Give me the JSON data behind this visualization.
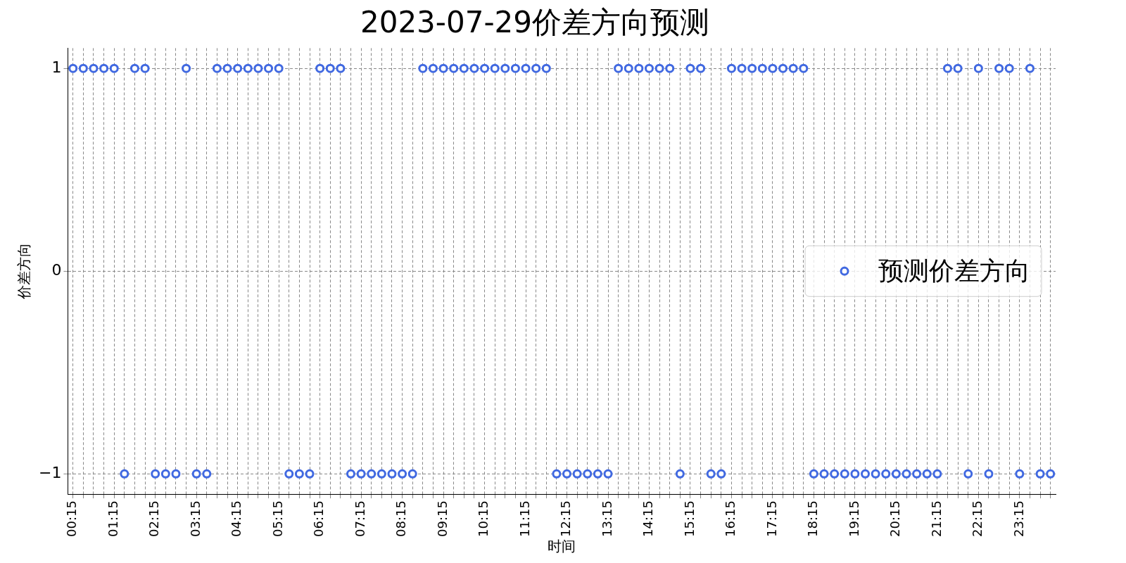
{
  "chart_data": {
    "type": "scatter",
    "title": "2023-07-29价差方向预测",
    "xlabel": "时间",
    "ylabel": "价差方向",
    "categories": [
      "00:15",
      null,
      null,
      null,
      "01:15",
      null,
      null,
      null,
      "02:15",
      null,
      null,
      null,
      "03:15",
      null,
      null,
      null,
      "04:15",
      null,
      null,
      null,
      "05:15",
      null,
      null,
      null,
      "06:15",
      null,
      null,
      null,
      "07:15",
      null,
      null,
      null,
      "08:15",
      null,
      null,
      null,
      "09:15",
      null,
      null,
      null,
      "10:15",
      null,
      null,
      null,
      "11:15",
      null,
      null,
      null,
      "12:15",
      null,
      null,
      null,
      "13:15",
      null,
      null,
      null,
      "14:15",
      null,
      null,
      null,
      "15:15",
      null,
      null,
      null,
      "16:15",
      null,
      null,
      null,
      "17:15",
      null,
      null,
      null,
      "18:15",
      null,
      null,
      null,
      "19:15",
      null,
      null,
      null,
      "20:15",
      null,
      null,
      null,
      "21:15",
      null,
      null,
      null,
      "22:15",
      null,
      null,
      null,
      "23:15",
      null,
      null,
      null
    ],
    "series": [
      {
        "name": "预测价差方向",
        "color": "#4169e1",
        "values": [
          1,
          1,
          1,
          1,
          1,
          -1,
          1,
          1,
          -1,
          -1,
          -1,
          1,
          -1,
          -1,
          1,
          1,
          1,
          1,
          1,
          1,
          1,
          -1,
          -1,
          -1,
          1,
          1,
          1,
          -1,
          -1,
          -1,
          -1,
          -1,
          -1,
          -1,
          1,
          1,
          1,
          1,
          1,
          1,
          1,
          1,
          1,
          1,
          1,
          1,
          1,
          -1,
          -1,
          -1,
          -1,
          -1,
          -1,
          1,
          1,
          1,
          1,
          1,
          1,
          -1,
          1,
          1,
          -1,
          -1,
          1,
          1,
          1,
          1,
          1,
          1,
          1,
          1,
          -1,
          -1,
          -1,
          -1,
          -1,
          -1,
          -1,
          -1,
          -1,
          -1,
          -1,
          -1,
          -1,
          1,
          1,
          -1,
          1,
          -1,
          1,
          1,
          -1,
          1,
          -1,
          -1
        ]
      }
    ],
    "ylim": [
      -1.1,
      1.1
    ],
    "yticks": [
      -1,
      0,
      1
    ],
    "grid": true,
    "legend": "right",
    "marker": "circle"
  }
}
